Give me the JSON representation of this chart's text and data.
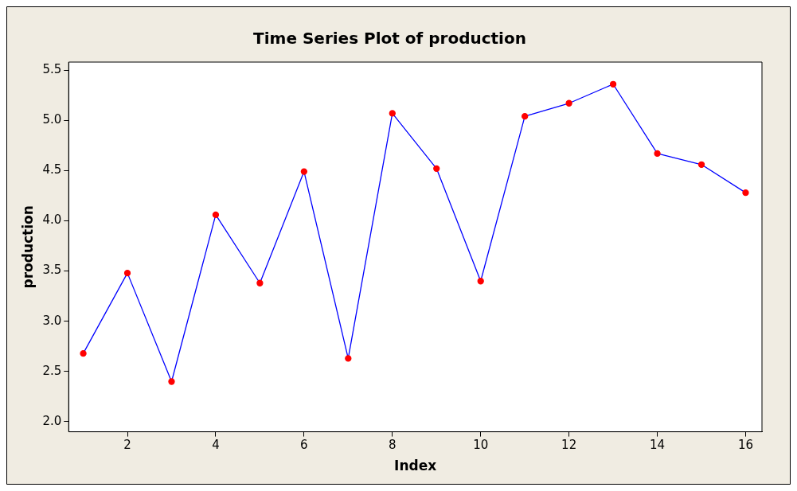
{
  "chart_data": {
    "type": "line",
    "title": "Time Series Plot of production",
    "xlabel": "Index",
    "ylabel": "production",
    "x": [
      1,
      2,
      3,
      4,
      5,
      6,
      7,
      8,
      9,
      10,
      11,
      12,
      13,
      14,
      15,
      16
    ],
    "series": [
      {
        "color": "#0000ff",
        "colors": [
          "#ff0000",
          "#ff0000",
          "#ff0000",
          "#ff0000",
          "#ff0000",
          "#ff0000",
          "#ff0000",
          "#ff0000",
          "#ff0000",
          "#ff0000",
          "#ff0000",
          "#ff0000",
          "#ff0000",
          "#ff0000",
          "#ff0000",
          "#ff0000"
        ],
        "values": [
          2.68,
          3.48,
          2.4,
          4.06,
          3.38,
          4.49,
          2.63,
          5.07,
          4.52,
          3.4,
          5.04,
          5.17,
          5.36,
          4.67,
          4.56,
          4.28
        ]
      }
    ],
    "xlim": [
      0.67,
      16.37
    ],
    "xticks": [
      2,
      4,
      6,
      8,
      10,
      12,
      14,
      16
    ],
    "ylim": [
      1.9,
      5.58
    ],
    "yticks": [
      {
        "value": 2,
        "label": "2.0"
      },
      {
        "value": 2.5,
        "label": "2.5"
      },
      {
        "value": 3,
        "label": "3.0"
      },
      {
        "value": 3.5,
        "label": "3.5"
      },
      {
        "value": 4,
        "label": "4.0"
      },
      {
        "value": 4.5,
        "label": "4.5"
      },
      {
        "value": 5,
        "label": "5.0"
      },
      {
        "value": 5.5,
        "label": "5.5"
      }
    ],
    "grid": false,
    "legend": false,
    "marker": "circle",
    "line_style": "solid"
  }
}
